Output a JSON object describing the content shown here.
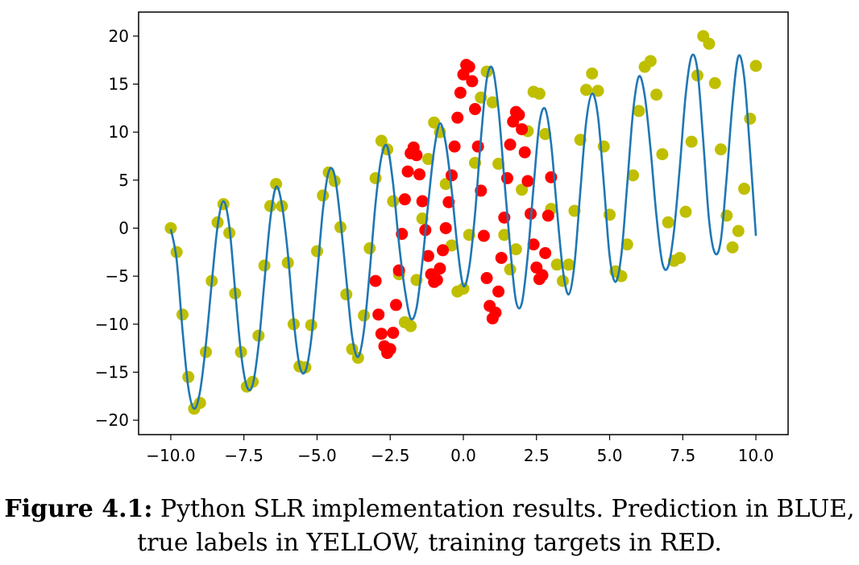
{
  "chart_data": {
    "type": "scatter",
    "title": "",
    "xlabel": "",
    "ylabel": "",
    "xlim": [
      -11.1,
      11.1
    ],
    "ylim": [
      -21.5,
      22.5
    ],
    "x_ticks": [
      -10.0,
      -7.5,
      -5.0,
      -2.5,
      0.0,
      2.5,
      5.0,
      7.5,
      10.0
    ],
    "x_tick_labels": [
      "−10.0",
      "−7.5",
      "−5.0",
      "−2.5",
      "0.0",
      "2.5",
      "5.0",
      "7.5",
      "10.0"
    ],
    "y_ticks": [
      -20,
      -15,
      -10,
      -5,
      0,
      5,
      10,
      15,
      20
    ],
    "y_tick_labels": [
      "−20",
      "−15",
      "−10",
      "−5",
      "0",
      "5",
      "10",
      "15",
      "20"
    ],
    "grid": false,
    "colors": {
      "true_labels": "#bfbf00",
      "training_targets": "#ff0000",
      "prediction": "#1f77b4"
    },
    "series": [
      {
        "mark": "markers",
        "color": "#bfbf00",
        "x": [
          -10.0,
          -9.8,
          -9.6,
          -9.4,
          -9.2,
          -9.0,
          -8.8,
          -8.6,
          -8.4,
          -8.2,
          -8.0,
          -7.8,
          -7.6,
          -7.4,
          -7.2,
          -7.0,
          -6.8,
          -6.6,
          -6.4,
          -6.2,
          -6.0,
          -5.8,
          -5.6,
          -5.4,
          -5.2,
          -5.0,
          -4.8,
          -4.6,
          -4.4,
          -4.2,
          -4.0,
          -3.8,
          -3.6,
          -3.4,
          -3.2,
          -3.0,
          -2.8,
          -2.6,
          -2.4,
          -2.2,
          -2.0,
          -1.8,
          -1.6,
          -1.4,
          -1.2,
          -1.0,
          -0.8,
          -0.6,
          -0.4,
          -0.2,
          0.0,
          0.2,
          0.4,
          0.6,
          0.8,
          1.0,
          1.2,
          1.4,
          1.6,
          1.8,
          2.0,
          2.2,
          2.4,
          2.6,
          2.8,
          3.0,
          3.2,
          3.4,
          3.6,
          3.8,
          4.0,
          4.2,
          4.4,
          4.6,
          4.8,
          5.0,
          5.2,
          5.4,
          5.6,
          5.8,
          6.0,
          6.2,
          6.4,
          6.6,
          6.8,
          7.0,
          7.2,
          7.4,
          7.6,
          7.8,
          8.0,
          8.2,
          8.4,
          8.6,
          8.8,
          9.0,
          9.2,
          9.4,
          9.6,
          9.8,
          10.0
        ],
        "y": [
          0.0,
          -2.5,
          -9.0,
          -15.5,
          -18.8,
          -18.2,
          -12.9,
          -5.5,
          0.6,
          2.5,
          -0.5,
          -6.8,
          -12.9,
          -16.5,
          -16.0,
          -11.2,
          -3.9,
          2.3,
          4.6,
          2.3,
          -3.6,
          -10.0,
          -14.4,
          -14.5,
          -10.1,
          -2.4,
          3.4,
          5.8,
          4.9,
          0.1,
          -6.9,
          -12.6,
          -13.5,
          -9.1,
          -2.1,
          5.2,
          9.1,
          8.2,
          2.8,
          -4.8,
          -9.8,
          -10.2,
          -5.4,
          1.0,
          7.2,
          11.0,
          10.0,
          4.6,
          -1.8,
          -6.6,
          -6.3,
          -0.7,
          6.8,
          13.6,
          16.3,
          13.1,
          6.7,
          -0.7,
          -4.3,
          -2.2,
          4.0,
          10.1,
          14.2,
          14.0,
          9.8,
          2.0,
          -3.8,
          -5.5,
          -3.8,
          1.8,
          9.2,
          14.4,
          16.1,
          14.3,
          8.5,
          1.4,
          -4.5,
          -5.0,
          -1.7,
          5.5,
          12.2,
          16.8,
          17.4,
          13.9,
          7.7,
          0.6,
          -3.4,
          -3.1,
          1.7,
          9.0,
          15.9,
          20.0,
          19.2,
          15.1,
          8.2,
          1.3,
          -2.0,
          -0.3,
          4.1,
          11.4,
          16.9
        ]
      },
      {
        "mark": "markers",
        "color": "#ff0000",
        "x": [
          -3.0,
          -2.9,
          -2.8,
          -2.7,
          -2.6,
          -2.5,
          -2.4,
          -2.3,
          -2.2,
          -2.1,
          -2.0,
          -1.9,
          -1.8,
          -1.7,
          -1.6,
          -1.5,
          -1.4,
          -1.3,
          -1.2,
          -1.1,
          -1.0,
          -0.9,
          -0.8,
          -0.7,
          -0.6,
          -0.5,
          -0.4,
          -0.3,
          -0.2,
          -0.1,
          0.0,
          0.1,
          0.2,
          0.3,
          0.4,
          0.5,
          0.6,
          0.7,
          0.8,
          0.9,
          1.0,
          1.1,
          1.2,
          1.3,
          1.4,
          1.5,
          1.6,
          1.7,
          1.8,
          1.9,
          2.0,
          2.1,
          2.2,
          2.3,
          2.4,
          2.5,
          2.6,
          2.7,
          2.8,
          2.9,
          3.0
        ],
        "y": [
          -5.5,
          -9.0,
          -11.0,
          -12.3,
          -13.0,
          -12.6,
          -10.9,
          -8.0,
          -4.4,
          -0.6,
          3.0,
          5.9,
          7.8,
          8.4,
          7.6,
          5.6,
          2.8,
          -0.2,
          -2.9,
          -4.8,
          -5.6,
          -5.4,
          -4.2,
          -2.3,
          0.0,
          2.7,
          5.5,
          8.5,
          11.5,
          14.1,
          16.0,
          17.0,
          16.8,
          15.3,
          12.4,
          8.5,
          3.9,
          -0.8,
          -5.2,
          -8.1,
          -9.4,
          -8.8,
          -6.6,
          -3.1,
          1.1,
          5.2,
          8.7,
          11.1,
          12.1,
          11.8,
          10.3,
          7.9,
          4.9,
          1.5,
          -1.7,
          -4.1,
          -5.3,
          -4.9,
          -2.6,
          1.3,
          5.3
        ]
      },
      {
        "mark": "line",
        "color": "#1f77b4",
        "x": [
          -10.0,
          -9.8,
          -9.6,
          -9.4,
          -9.2,
          -9.0,
          -8.8,
          -8.6,
          -8.4,
          -8.2,
          -8.0,
          -7.8,
          -7.6,
          -7.4,
          -7.2,
          -7.0,
          -6.8,
          -6.6,
          -6.4,
          -6.2,
          -6.0,
          -5.8,
          -5.6,
          -5.4,
          -5.2,
          -5.0,
          -4.8,
          -4.6,
          -4.4,
          -4.2,
          -4.0,
          -3.8,
          -3.6,
          -3.4,
          -3.2,
          -3.0,
          -2.8,
          -2.6,
          -2.4,
          -2.2,
          -2.0,
          -1.8,
          -1.6,
          -1.4,
          -1.2,
          -1.0,
          -0.8,
          -0.6,
          -0.4,
          -0.2,
          0.0,
          0.2,
          0.4,
          0.6,
          0.8,
          1.0,
          1.2,
          1.4,
          1.6,
          1.8,
          2.0,
          2.2,
          2.4,
          2.6,
          2.8,
          3.0,
          3.2,
          3.4,
          3.6,
          3.8,
          4.0,
          4.2,
          4.4,
          4.6,
          4.8,
          5.0,
          5.2,
          5.4,
          5.6,
          5.8,
          6.0,
          6.2,
          6.4,
          6.6,
          6.8,
          7.0,
          7.2,
          7.4,
          7.6,
          7.8,
          8.0,
          8.2,
          8.4,
          8.6,
          8.8,
          9.0,
          9.2,
          9.4,
          9.6,
          9.8,
          10.0
        ],
        "y": [
          -0.1,
          -3.3,
          -10.6,
          -16.6,
          -18.8,
          -17.0,
          -12.1,
          -5.7,
          0.2,
          2.8,
          0.2,
          -6.5,
          -13.0,
          -16.5,
          -16.3,
          -12.2,
          -5.6,
          0.9,
          4.3,
          2.4,
          -2.6,
          -9.6,
          -14.3,
          -14.9,
          -11.6,
          -5.0,
          1.9,
          5.9,
          5.5,
          0.8,
          -5.3,
          -11.3,
          -13.4,
          -10.7,
          -4.5,
          2.6,
          7.4,
          8.5,
          4.6,
          -1.6,
          -6.4,
          -9.4,
          -8.3,
          -3.5,
          2.6,
          8.1,
          10.9,
          8.8,
          4.0,
          -2.0,
          -6.0,
          -4.1,
          1.5,
          9.3,
          15.5,
          16.6,
          12.4,
          5.1,
          -2.0,
          -7.6,
          -7.8,
          -2.9,
          4.3,
          10.9,
          12.4,
          8.8,
          1.9,
          -4.3,
          -6.9,
          -3.7,
          3.9,
          11.1,
          14.0,
          11.7,
          4.7,
          -2.9,
          -5.6,
          -2.8,
          4.5,
          12.1,
          15.8,
          13.8,
          8.2,
          1.3,
          -3.6,
          -4.0,
          -0.3,
          6.4,
          13.9,
          17.9,
          16.5,
          9.1,
          0.8,
          -2.6,
          -1.3,
          5.3,
          13.0,
          17.9,
          15.7,
          8.0,
          -0.8
        ]
      }
    ]
  },
  "caption": {
    "label": "Figure 4.1:",
    "text": "Python SLR implementation results. Prediction in BLUE, true labels in YELLOW, training targets in RED."
  }
}
